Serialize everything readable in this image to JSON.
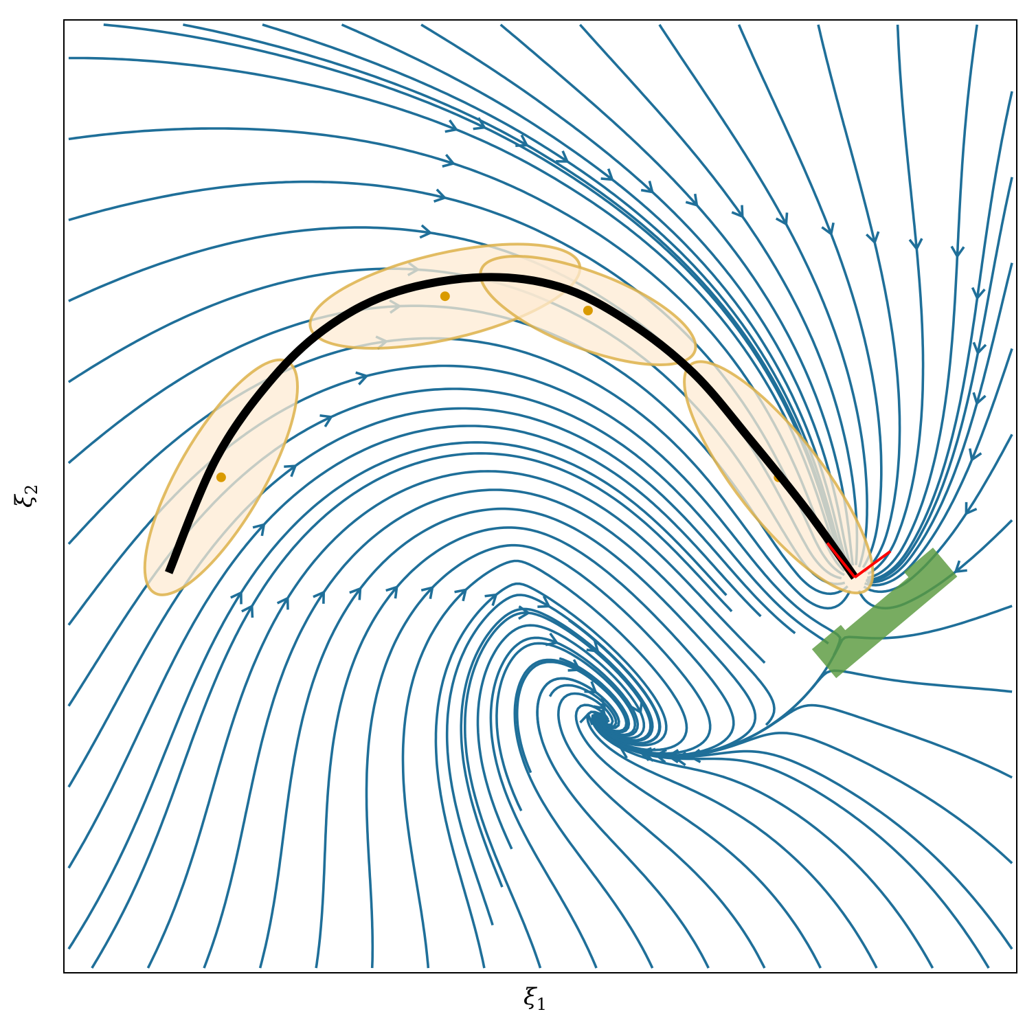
{
  "chart_data": {
    "type": "streamplot",
    "title": "",
    "xlabel": "ξ",
    "xlabel_sub": "1",
    "ylabel": "ξ",
    "ylabel_sub": "2",
    "xlim": [
      -1,
      1
    ],
    "ylim": [
      -1,
      1
    ],
    "ticks": "none",
    "grid": false,
    "legend": "none",
    "colors": {
      "streamline": "#1f6f99",
      "trajectory": "#000000",
      "ellipse_fill": "#fdebd3",
      "ellipse_edge": "#ddb24a",
      "ellipse_center": "#d99a00",
      "target": "#5a9a3e",
      "frame_axes": "#ff0000"
    },
    "attractor": {
      "x": 0.66,
      "y": -0.17
    },
    "trajectory": [
      [
        -0.78,
        -0.16
      ],
      [
        -0.68,
        0.08
      ],
      [
        -0.56,
        0.25
      ],
      [
        -0.44,
        0.36
      ],
      [
        -0.3,
        0.43
      ],
      [
        -0.12,
        0.46
      ],
      [
        0.04,
        0.44
      ],
      [
        0.18,
        0.37
      ],
      [
        0.32,
        0.26
      ],
      [
        0.44,
        0.12
      ],
      [
        0.56,
        -0.03
      ],
      [
        0.66,
        -0.17
      ]
    ],
    "gaussians": [
      {
        "center": [
          -0.67,
          0.04
        ],
        "rx": 0.28,
        "ry": 0.09,
        "angle_deg": 60
      },
      {
        "center": [
          -0.2,
          0.42
        ],
        "rx": 0.29,
        "ry": 0.09,
        "angle_deg": 13
      },
      {
        "center": [
          0.1,
          0.39
        ],
        "rx": 0.24,
        "ry": 0.08,
        "angle_deg": -21
      },
      {
        "center": [
          0.5,
          0.04
        ],
        "rx": 0.3,
        "ry": 0.09,
        "angle_deg": -52
      }
    ]
  }
}
